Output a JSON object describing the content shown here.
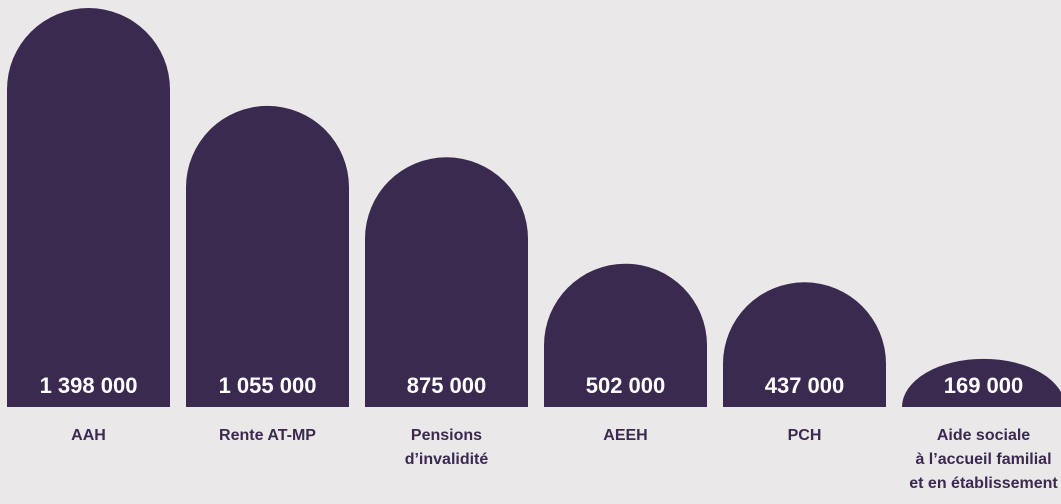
{
  "chart_data": {
    "type": "bar",
    "categories": [
      [
        "AAH"
      ],
      [
        "Rente AT-MP"
      ],
      [
        "Pensions",
        "d’invalidité"
      ],
      [
        "AEEH"
      ],
      [
        "PCH"
      ],
      [
        "Aide sociale",
        "à l’accueil familial",
        "et en établissement"
      ]
    ],
    "values": [
      1398000,
      1055000,
      875000,
      502000,
      437000,
      169000
    ],
    "value_labels": [
      "1 398 000",
      "1 055 000",
      "875 000",
      "502 000",
      "437 000",
      "169 000"
    ],
    "title": "",
    "xlabel": "",
    "ylabel": "",
    "ylim": [
      0,
      1398000
    ],
    "grid": false,
    "legend": "none",
    "colors": {
      "bar": "#3a2a50",
      "value_text": "#ffffff",
      "category_text": "#3a2a50",
      "background": "#ebe8ea"
    }
  }
}
